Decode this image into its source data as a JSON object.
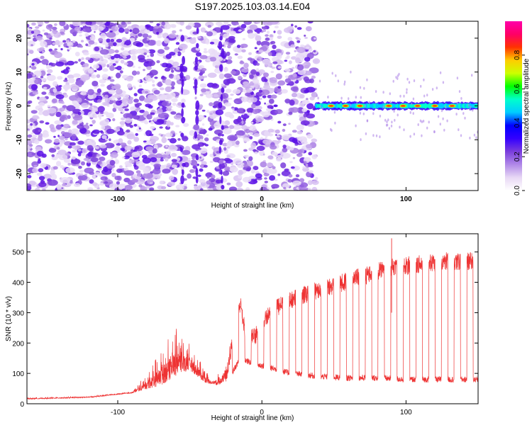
{
  "title": "S197.2025.103.03.14.E04",
  "chart_data": [
    {
      "type": "heatmap",
      "xlabel": "Height of straight line (km)",
      "ylabel": "Frequency (Hz)",
      "xlim": [
        -163,
        150
      ],
      "ylim": [
        -25,
        25
      ],
      "xticks": [
        -100,
        0,
        100
      ],
      "yticks": [
        -20,
        -10,
        0,
        10,
        20
      ],
      "colorbar": {
        "label": "Normalized spectral amplitude",
        "range": [
          0,
          1
        ],
        "ticks": [
          0.0,
          0.2,
          0.4,
          0.6,
          0.8
        ],
        "colors": [
          "#ffffff",
          "#e8d8f5",
          "#b088e8",
          "#7a3ddc",
          "#3300ff",
          "#0000ff",
          "#00ccff",
          "#00ffcc",
          "#00ff00",
          "#ccff00",
          "#ffcc00",
          "#ff3300",
          "#ff0066",
          "#ff00aa"
        ]
      },
      "regions": [
        {
          "x": [
            -163,
            38
          ],
          "description_freq_range": [
            -25,
            25
          ]
        },
        {
          "x": [
            38,
            150
          ],
          "freq_center": 0
        }
      ]
    },
    {
      "type": "line",
      "xlabel": "Height of straight line (km)",
      "ylabel": "SNR (10 * v/v)",
      "xlim": [
        -163,
        150
      ],
      "ylim": [
        0,
        560
      ],
      "xticks": [
        -100,
        0,
        100
      ],
      "yticks": [
        0,
        100,
        200,
        300,
        400,
        500
      ],
      "series": [
        {
          "color": "#ee3333",
          "baseline": [
            [
              -163,
              15
            ],
            [
              -120,
              20
            ],
            [
              -90,
              35
            ],
            [
              -70,
              60
            ],
            [
              -60,
              90
            ],
            [
              -50,
              110
            ],
            [
              -45,
              90
            ],
            [
              -40,
              70
            ],
            [
              -30,
              60
            ],
            [
              -22,
              90
            ],
            [
              -15,
              150
            ],
            [
              -5,
              130
            ],
            [
              5,
              120
            ],
            [
              20,
              100
            ],
            [
              40,
              90
            ],
            [
              60,
              85
            ],
            [
              80,
              85
            ],
            [
              100,
              80
            ],
            [
              120,
              80
            ],
            [
              140,
              80
            ],
            [
              150,
              80
            ]
          ],
          "envelope": [
            [
              -163,
              20
            ],
            [
              -120,
              25
            ],
            [
              -90,
              40
            ],
            [
              -80,
              100
            ],
            [
              -70,
              180
            ],
            [
              -60,
              250
            ],
            [
              -55,
              230
            ],
            [
              -45,
              160
            ],
            [
              -35,
              80
            ],
            [
              -25,
              120
            ],
            [
              -18,
              300
            ],
            [
              -15,
              360
            ],
            [
              -12,
              280
            ],
            [
              -5,
              250
            ],
            [
              5,
              330
            ],
            [
              15,
              360
            ],
            [
              25,
              380
            ],
            [
              35,
              400
            ],
            [
              50,
              420
            ],
            [
              70,
              450
            ],
            [
              90,
              480
            ],
            [
              110,
              490
            ],
            [
              130,
              500
            ],
            [
              150,
              500
            ]
          ],
          "peak_x": [
            90
          ],
          "peak_y": [
            545
          ]
        }
      ]
    }
  ]
}
